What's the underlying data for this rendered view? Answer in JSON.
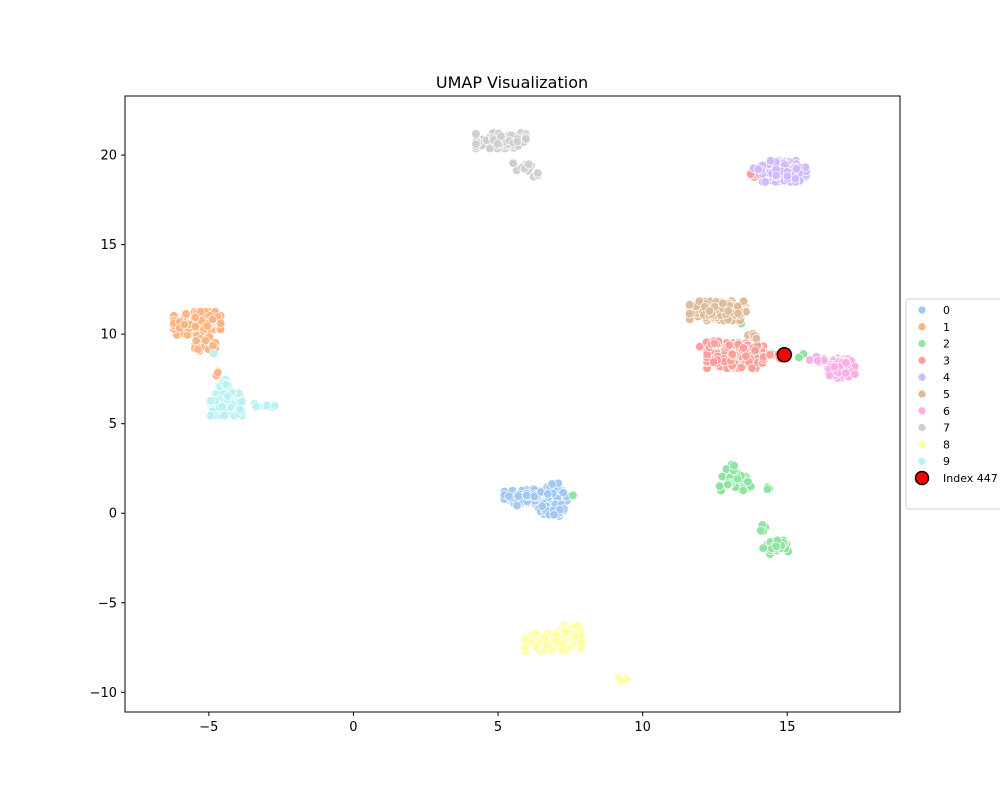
{
  "chart_data": {
    "type": "scatter",
    "title": "UMAP Visualization",
    "xlabel": "",
    "ylabel": "",
    "xlim": [
      -7.9,
      18.9
    ],
    "ylim": [
      -11.1,
      23.3
    ],
    "xticks": [
      -5,
      0,
      5,
      10,
      15
    ],
    "xtick_labels": [
      "−5",
      "0",
      "5",
      "10",
      "15"
    ],
    "yticks": [
      -10,
      -5,
      0,
      5,
      10,
      15,
      20
    ],
    "ytick_labels": [
      "−10",
      "−5",
      "0",
      "5",
      "10",
      "15",
      "20"
    ],
    "grid": false,
    "legend_position": "right (outside, partially clipped)",
    "series": [
      {
        "name": "0",
        "color": "#a1c9f4",
        "clusters": [
          {
            "cx": 6.3,
            "cy": 0.9,
            "rx": 1.0,
            "ry": 0.45,
            "n": 140
          },
          {
            "cx": 6.9,
            "cy": 0.2,
            "rx": 0.45,
            "ry": 0.35,
            "n": 30
          },
          {
            "cx": 7.0,
            "cy": 1.4,
            "rx": 0.3,
            "ry": 0.3,
            "n": 12
          }
        ]
      },
      {
        "name": "1",
        "color": "#ffb482",
        "clusters": [
          {
            "cx": -5.4,
            "cy": 10.6,
            "rx": 0.75,
            "ry": 0.6,
            "n": 140
          },
          {
            "cx": -5.1,
            "cy": 9.5,
            "rx": 0.35,
            "ry": 0.4,
            "n": 25
          },
          {
            "cx": -4.8,
            "cy": 7.8,
            "rx": 0.1,
            "ry": 0.1,
            "n": 3
          }
        ]
      },
      {
        "name": "2",
        "color": "#8de5a1",
        "clusters": [
          {
            "cx": 13.2,
            "cy": 1.7,
            "rx": 0.5,
            "ry": 0.4,
            "n": 35
          },
          {
            "cx": 13.1,
            "cy": 2.5,
            "rx": 0.2,
            "ry": 0.2,
            "n": 8
          },
          {
            "cx": 14.3,
            "cy": 1.4,
            "rx": 0.2,
            "ry": 0.1,
            "n": 4
          },
          {
            "cx": 14.6,
            "cy": -1.9,
            "rx": 0.4,
            "ry": 0.35,
            "n": 35
          },
          {
            "cx": 14.2,
            "cy": -0.8,
            "rx": 0.15,
            "ry": 0.2,
            "n": 5
          },
          {
            "cx": 15.2,
            "cy": 8.8,
            "rx": 0.4,
            "ry": 0.12,
            "n": 5
          },
          {
            "cx": 13.3,
            "cy": 10.7,
            "rx": 0.1,
            "ry": 0.1,
            "n": 2
          },
          {
            "cx": 7.6,
            "cy": 1.0,
            "rx": 0.05,
            "ry": 0.05,
            "n": 1
          }
        ]
      },
      {
        "name": "3",
        "color": "#ff9f9b",
        "clusters": [
          {
            "cx": 13.2,
            "cy": 8.8,
            "rx": 0.9,
            "ry": 0.65,
            "n": 220
          },
          {
            "cx": 12.3,
            "cy": 9.4,
            "rx": 0.3,
            "ry": 0.2,
            "n": 15
          },
          {
            "cx": 14.5,
            "cy": 8.8,
            "rx": 0.3,
            "ry": 0.15,
            "n": 10
          },
          {
            "cx": 13.9,
            "cy": 18.8,
            "rx": 0.15,
            "ry": 0.2,
            "n": 5
          }
        ]
      },
      {
        "name": "4",
        "color": "#d0bbff",
        "clusters": [
          {
            "cx": 14.9,
            "cy": 19.1,
            "rx": 0.7,
            "ry": 0.55,
            "n": 160
          },
          {
            "cx": 14.0,
            "cy": 19.2,
            "rx": 0.15,
            "ry": 0.1,
            "n": 4
          }
        ]
      },
      {
        "name": "5",
        "color": "#debb9b",
        "clusters": [
          {
            "cx": 12.6,
            "cy": 11.3,
            "rx": 0.9,
            "ry": 0.5,
            "n": 170
          },
          {
            "cx": 13.8,
            "cy": 9.9,
            "rx": 0.2,
            "ry": 0.15,
            "n": 8
          }
        ]
      },
      {
        "name": "6",
        "color": "#fab0e4",
        "clusters": [
          {
            "cx": 16.9,
            "cy": 8.1,
            "rx": 0.45,
            "ry": 0.5,
            "n": 120
          },
          {
            "cx": 16.1,
            "cy": 8.6,
            "rx": 0.3,
            "ry": 0.15,
            "n": 10
          }
        ]
      },
      {
        "name": "7",
        "color": "#cfcfcf",
        "clusters": [
          {
            "cx": 5.1,
            "cy": 20.8,
            "rx": 0.8,
            "ry": 0.4,
            "n": 90
          },
          {
            "cx": 5.9,
            "cy": 19.4,
            "rx": 0.35,
            "ry": 0.25,
            "n": 10
          },
          {
            "cx": 6.4,
            "cy": 18.9,
            "rx": 0.15,
            "ry": 0.1,
            "n": 4
          }
        ]
      },
      {
        "name": "8",
        "color": "#fffea3",
        "clusters": [
          {
            "cx": 6.9,
            "cy": -7.2,
            "rx": 0.9,
            "ry": 0.45,
            "n": 110
          },
          {
            "cx": 7.6,
            "cy": -6.6,
            "rx": 0.4,
            "ry": 0.3,
            "n": 20
          },
          {
            "cx": 9.3,
            "cy": -9.2,
            "rx": 0.15,
            "ry": 0.15,
            "n": 3
          }
        ]
      },
      {
        "name": "9",
        "color": "#b9f2f0",
        "clusters": [
          {
            "cx": -4.4,
            "cy": 6.1,
            "rx": 0.5,
            "ry": 0.6,
            "n": 110
          },
          {
            "cx": -4.4,
            "cy": 7.3,
            "rx": 0.2,
            "ry": 0.25,
            "n": 12
          },
          {
            "cx": -3.1,
            "cy": 6.0,
            "rx": 0.35,
            "ry": 0.15,
            "n": 10
          },
          {
            "cx": -4.9,
            "cy": 8.9,
            "rx": 0.1,
            "ry": 0.1,
            "n": 2
          }
        ]
      }
    ],
    "highlight": {
      "name": "Index 447",
      "x": 14.9,
      "y": 8.85,
      "color": "#ff0000",
      "edge": "#000000"
    }
  }
}
